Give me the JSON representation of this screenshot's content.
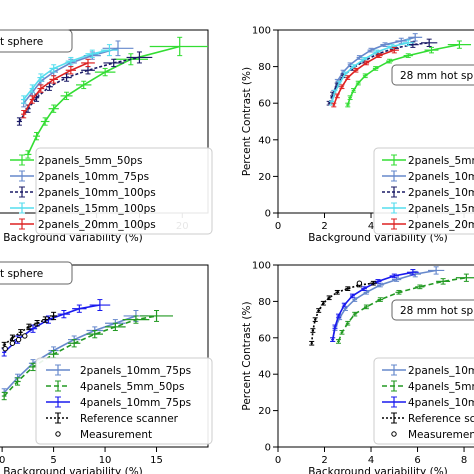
{
  "chart_data": [
    {
      "id": "tl",
      "type": "line",
      "xlabel": "Background variability (%)",
      "ylabel": "",
      "xlim": [
        -1.5,
        23
      ],
      "ylim": [
        0,
        100
      ],
      "xticks": [
        10,
        15,
        20
      ],
      "xtick_labels": [
        "10",
        "15",
        "20"
      ],
      "yticks": [],
      "ytick_labels": [],
      "box_label": "t sphere",
      "legend_position": "lower-right",
      "series": [
        {
          "name": "2panels_5mm_50ps",
          "color": "#33dd33",
          "dash": "",
          "marker": "errorbar",
          "x": [
            2.0,
            3.0,
            4.0,
            5.0,
            6.5,
            8.5,
            11.0,
            14.0,
            19.7
          ],
          "y": [
            32,
            42,
            50,
            57,
            64,
            70,
            77,
            84,
            91
          ],
          "xerr": [
            0.4,
            0.4,
            0.5,
            0.6,
            0.7,
            0.9,
            1.2,
            2.0,
            3.5
          ],
          "yerr": [
            2,
            2,
            2,
            2,
            2,
            2,
            2,
            3,
            5
          ]
        },
        {
          "name": "2panels_10mm_75ps",
          "color": "#6688cc",
          "dash": "",
          "marker": "errorbar",
          "x": [
            1.5,
            2.5,
            3.5,
            5.0,
            7.0,
            9.5,
            12.5
          ],
          "y": [
            60,
            66,
            72,
            77,
            82,
            86,
            90
          ],
          "xerr": [
            0.3,
            0.3,
            0.4,
            0.5,
            0.7,
            1.0,
            1.8
          ],
          "yerr": [
            2,
            2,
            2,
            2,
            2,
            2,
            4
          ]
        },
        {
          "name": "2panels_10mm_100ps",
          "color": "#1a1a66",
          "dash": "3,2",
          "marker": "errorbar",
          "x": [
            1.0,
            2.0,
            3.0,
            4.5,
            6.5,
            9.0,
            12.0,
            15.0
          ],
          "y": [
            50,
            57,
            63,
            69,
            74,
            78,
            82,
            85
          ],
          "xerr": [
            0.3,
            0.3,
            0.3,
            0.4,
            0.6,
            0.8,
            1.2,
            1.5
          ],
          "yerr": [
            2,
            2,
            2,
            2,
            2,
            2,
            2,
            3
          ]
        },
        {
          "name": "2panels_15mm_100ps",
          "color": "#55ddee",
          "dash": "",
          "marker": "errorbar",
          "x": [
            1.5,
            2.5,
            3.5,
            5.0,
            7.0,
            9.5,
            11.5
          ],
          "y": [
            62,
            68,
            74,
            79,
            83,
            87,
            89
          ],
          "xerr": [
            0.3,
            0.3,
            0.4,
            0.5,
            0.6,
            0.8,
            1.0
          ],
          "yerr": [
            2,
            2,
            2,
            2,
            2,
            2,
            3
          ]
        },
        {
          "name": "2panels_20mm_100ps",
          "color": "#dd2222",
          "dash": "",
          "marker": "errorbar",
          "x": [
            1.5,
            2.5,
            3.5,
            5.0,
            7.0,
            9.0
          ],
          "y": [
            54,
            62,
            68,
            73,
            78,
            82
          ],
          "xerr": [
            0.3,
            0.3,
            0.4,
            0.5,
            0.6,
            0.8
          ],
          "yerr": [
            2,
            2,
            2,
            2,
            2,
            2
          ]
        }
      ]
    },
    {
      "id": "tr",
      "type": "line",
      "xlabel": "Background variability (%)",
      "ylabel": "Percent Contrast (%)",
      "xlim": [
        0,
        8.6
      ],
      "ylim": [
        0,
        100
      ],
      "xticks": [
        0,
        2,
        4,
        6,
        8
      ],
      "xtick_labels": [
        "0",
        "2",
        "4",
        "6",
        "8"
      ],
      "yticks": [
        0,
        20,
        40,
        60,
        80,
        100
      ],
      "ytick_labels": [
        "0",
        "20",
        "40",
        "60",
        "80",
        "100"
      ],
      "box_label": "28 mm hot sphere",
      "legend_position": "lower-right",
      "series": [
        {
          "name": "2panels_5mm_50ps",
          "color": "#33dd33",
          "dash": "",
          "marker": "errorbar",
          "x": [
            3.0,
            3.1,
            3.25,
            3.45,
            3.75,
            4.2,
            4.8,
            5.6,
            6.6,
            7.8
          ],
          "y": [
            59,
            63,
            67,
            71,
            75,
            79,
            83,
            86,
            89,
            92
          ],
          "xerr": [
            0.08,
            0.08,
            0.08,
            0.1,
            0.1,
            0.12,
            0.15,
            0.2,
            0.3,
            0.5
          ],
          "yerr": [
            1,
            1,
            1,
            1,
            1,
            1,
            1,
            1,
            1.5,
            2
          ]
        },
        {
          "name": "2panels_10mm_75ps",
          "color": "#6688cc",
          "dash": "",
          "marker": "errorbar",
          "x": [
            2.3,
            2.4,
            2.55,
            2.8,
            3.1,
            3.5,
            4.0,
            4.6,
            5.3,
            5.9
          ],
          "y": [
            60,
            66,
            72,
            77,
            81,
            85,
            89,
            92,
            94,
            96
          ],
          "xerr": [
            0.06,
            0.06,
            0.08,
            0.08,
            0.1,
            0.12,
            0.15,
            0.2,
            0.25,
            0.3
          ],
          "yerr": [
            1,
            1,
            1,
            1,
            1,
            1,
            1,
            1,
            1.5,
            2
          ]
        },
        {
          "name": "2panels_10mm_100ps",
          "color": "#1a1a66",
          "dash": "3,2",
          "marker": "errorbar",
          "x": [
            2.2,
            2.35,
            2.55,
            2.8,
            3.2,
            3.7,
            4.3,
            5.0,
            5.8,
            6.5
          ],
          "y": [
            60,
            65,
            70,
            75,
            79,
            83,
            87,
            90,
            92,
            93
          ],
          "xerr": [
            0.06,
            0.06,
            0.08,
            0.08,
            0.1,
            0.12,
            0.15,
            0.2,
            0.25,
            0.35
          ],
          "yerr": [
            1,
            1,
            1,
            1,
            1,
            1,
            1,
            1,
            1.5,
            2
          ]
        },
        {
          "name": "2panels_15mm_100ps",
          "color": "#55ddee",
          "dash": "",
          "marker": "errorbar",
          "x": [
            2.3,
            2.45,
            2.65,
            2.9,
            3.25,
            3.7,
            4.25,
            4.9,
            5.6
          ],
          "y": [
            60,
            66,
            71,
            76,
            80,
            84,
            88,
            91,
            93
          ],
          "xerr": [
            0.06,
            0.06,
            0.08,
            0.08,
            0.1,
            0.12,
            0.15,
            0.2,
            0.25
          ],
          "yerr": [
            1,
            1,
            1,
            1,
            1,
            1,
            1,
            1,
            1.5
          ]
        },
        {
          "name": "2panels_20mm_100ps",
          "color": "#dd2222",
          "dash": "",
          "marker": "errorbar",
          "x": [
            2.4,
            2.55,
            2.75,
            3.0,
            3.35,
            3.8,
            4.35,
            5.0
          ],
          "y": [
            59,
            64,
            69,
            74,
            78,
            82,
            86,
            89
          ],
          "xerr": [
            0.06,
            0.06,
            0.08,
            0.08,
            0.1,
            0.12,
            0.15,
            0.2
          ],
          "yerr": [
            1,
            1,
            1,
            1,
            1,
            1,
            1,
            1.5
          ]
        }
      ]
    },
    {
      "id": "bl",
      "type": "line",
      "xlabel": "Background variability (%)",
      "ylabel": "",
      "xlim": [
        -0.4,
        20
      ],
      "ylim": [
        0,
        100
      ],
      "xticks": [
        0,
        5,
        10,
        15
      ],
      "xtick_labels": [
        "0",
        "5",
        "10",
        "15"
      ],
      "yticks": [],
      "ytick_labels": [],
      "box_label": "t sphere",
      "legend_position": "lower-right",
      "series": [
        {
          "name": "2panels_10mm_75ps",
          "color": "#6688cc",
          "dash": "",
          "marker": "errorbar",
          "x": [
            0.2,
            1.5,
            3.0,
            5.0,
            7.0,
            9.0,
            11.0,
            13.0
          ],
          "y": [
            30,
            38,
            46,
            53,
            59,
            64,
            68,
            72
          ],
          "xerr": [
            0.2,
            0.3,
            0.4,
            0.5,
            0.6,
            0.8,
            1.0,
            1.2
          ],
          "yerr": [
            2,
            2,
            2,
            2,
            2,
            2,
            2,
            3
          ]
        },
        {
          "name": "4panels_5mm_50ps",
          "color": "#229922",
          "dash": "5,3",
          "marker": "errorbar",
          "x": [
            0.2,
            1.5,
            3.0,
            5.0,
            7.0,
            9.0,
            11.0,
            13.0,
            15.0
          ],
          "y": [
            28,
            36,
            44,
            51,
            57,
            62,
            66,
            70,
            72
          ],
          "xerr": [
            0.2,
            0.3,
            0.4,
            0.5,
            0.6,
            0.8,
            1.0,
            1.3,
            1.6
          ],
          "yerr": [
            2,
            2,
            2,
            2,
            2,
            2,
            2,
            2,
            3
          ]
        },
        {
          "name": "4panels_10mm_75ps",
          "color": "#1a1aee",
          "dash": "",
          "marker": "errorbar",
          "x": [
            0.2,
            1.5,
            3.0,
            4.5,
            6.0,
            7.5,
            9.5
          ],
          "y": [
            52,
            59,
            65,
            70,
            73,
            76,
            78
          ],
          "xerr": [
            0.2,
            0.3,
            0.4,
            0.5,
            0.6,
            0.7,
            1.0
          ],
          "yerr": [
            2,
            2,
            2,
            2,
            2,
            2,
            3
          ]
        },
        {
          "name": "Reference scanner",
          "color": "#000000",
          "dash": "2,2",
          "marker": "errorbar",
          "x": [
            0.2,
            1.0,
            1.8,
            2.6,
            3.4,
            4.2,
            5.0
          ],
          "y": [
            56,
            60,
            63,
            66,
            68,
            70,
            72
          ],
          "xerr": [
            0.15,
            0.15,
            0.2,
            0.2,
            0.25,
            0.3,
            0.35
          ],
          "yerr": [
            1.5,
            1.5,
            1.5,
            1.5,
            1.5,
            1.5,
            2
          ]
        },
        {
          "name": "Measurement",
          "color": "#000000",
          "dash": "",
          "marker": "circle",
          "x": [
            0.3,
            1.0,
            1.6,
            2.2
          ],
          "y": [
            54,
            57,
            59,
            61
          ],
          "xerr": [],
          "yerr": []
        }
      ]
    },
    {
      "id": "br",
      "type": "line",
      "xlabel": "Background variability (%)",
      "ylabel": "Percent Contrast (%)",
      "xlim": [
        0,
        8.6
      ],
      "ylim": [
        0,
        100
      ],
      "xticks": [
        0,
        2,
        4,
        6,
        8
      ],
      "xtick_labels": [
        "0",
        "2",
        "4",
        "6",
        "8"
      ],
      "yticks": [
        0,
        20,
        40,
        60,
        80,
        100
      ],
      "ytick_labels": [
        "0",
        "20",
        "40",
        "60",
        "80",
        "100"
      ],
      "box_label": "28 mm hot sphere",
      "legend_position": "lower-right",
      "series": [
        {
          "name": "2panels_10mm_75ps",
          "color": "#6688cc",
          "dash": "",
          "marker": "errorbar",
          "x": [
            2.35,
            2.45,
            2.65,
            2.9,
            3.3,
            3.8,
            4.4,
            5.1,
            5.9,
            6.8
          ],
          "y": [
            59,
            65,
            71,
            76,
            81,
            85,
            89,
            92,
            95,
            97
          ],
          "xerr": [
            0.06,
            0.06,
            0.08,
            0.08,
            0.1,
            0.12,
            0.15,
            0.2,
            0.25,
            0.35
          ],
          "yerr": [
            1,
            1,
            1,
            1,
            1,
            1,
            1,
            1,
            1.5,
            2
          ]
        },
        {
          "name": "4panels_5mm_50ps",
          "color": "#229922",
          "dash": "5,3",
          "marker": "errorbar",
          "x": [
            2.6,
            2.75,
            3.0,
            3.3,
            3.8,
            4.4,
            5.2,
            6.1,
            7.1,
            8.1
          ],
          "y": [
            58,
            63,
            68,
            73,
            77,
            81,
            85,
            88,
            91,
            93
          ],
          "xerr": [
            0.06,
            0.06,
            0.08,
            0.08,
            0.1,
            0.12,
            0.15,
            0.2,
            0.3,
            0.45
          ],
          "yerr": [
            1,
            1,
            1,
            1,
            1,
            1,
            1,
            1,
            1.5,
            2
          ]
        },
        {
          "name": "4panels_10mm_75ps",
          "color": "#1a1aee",
          "dash": "",
          "marker": "errorbar",
          "x": [
            2.35,
            2.45,
            2.6,
            2.85,
            3.2,
            3.7,
            4.3,
            5.0,
            5.8
          ],
          "y": [
            59,
            66,
            72,
            78,
            83,
            87,
            91,
            94,
            96
          ],
          "xerr": [
            0.06,
            0.06,
            0.08,
            0.08,
            0.1,
            0.12,
            0.15,
            0.2,
            0.25
          ],
          "yerr": [
            1,
            1,
            1,
            1,
            1,
            1,
            1,
            1,
            1.5
          ]
        },
        {
          "name": "Reference scanner",
          "color": "#000000",
          "dash": "2,2",
          "marker": "errorbar",
          "x": [
            1.45,
            1.5,
            1.6,
            1.75,
            1.95,
            2.2,
            2.55,
            3.0,
            3.5,
            4.1
          ],
          "y": [
            57,
            64,
            70,
            75,
            79,
            82,
            85,
            87,
            89,
            90
          ],
          "xerr": [
            0.05,
            0.05,
            0.05,
            0.06,
            0.06,
            0.07,
            0.08,
            0.1,
            0.12,
            0.15
          ],
          "yerr": [
            1,
            1,
            1,
            1,
            1,
            1,
            1,
            1,
            1,
            1
          ]
        },
        {
          "name": "Measurement",
          "color": "#000000",
          "dash": "",
          "marker": "circle",
          "x": [
            3.5
          ],
          "y": [
            90
          ],
          "xerr": [],
          "yerr": []
        }
      ]
    }
  ]
}
